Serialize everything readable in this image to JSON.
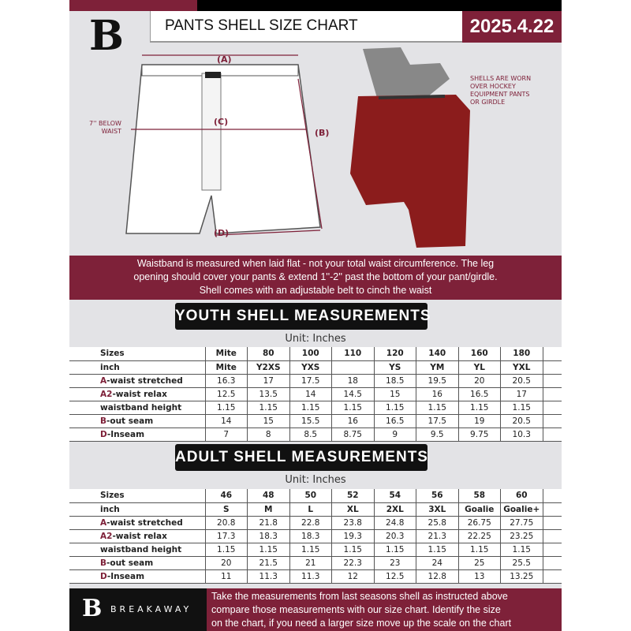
{
  "header": {
    "logo_letter": "B",
    "title": "PANTS SHELL SIZE CHART",
    "date": "2025.4.22"
  },
  "diagram": {
    "label_a": "(A)",
    "label_b": "(B)",
    "label_c": "(C)",
    "label_d": "(D)",
    "below_waist": "7'' BELOW\nWAIST",
    "worn_note": "SHELLS ARE WORN\nOVER HOCKEY\nEQUIPMENT PANTS\nOR GIRDLE"
  },
  "banner": [
    "Waistband is measured when laid flat - not your total waist circumference. The leg",
    "opening should cover your pants & extend 1''-2'' past the bottom of your pant/girdle.",
    "Shell comes with an adjustable belt to cinch the waist"
  ],
  "youth": {
    "heading": "YOUTH SHELL MEASUREMENTS",
    "unit": "Unit: Inches",
    "rows": [
      {
        "prefix": "",
        "label": "Sizes",
        "values": [
          "Mite",
          "80",
          "100",
          "110",
          "120",
          "140",
          "160",
          "180"
        ]
      },
      {
        "prefix": "",
        "label": "inch",
        "values": [
          "Mite",
          "Y2XS",
          "YXS",
          "",
          "YS",
          "YM",
          "YL",
          "YXL"
        ]
      },
      {
        "prefix": "A",
        "label": "-waist stretched",
        "values": [
          "16.3",
          "17",
          "17.5",
          "18",
          "18.5",
          "19.5",
          "20",
          "20.5"
        ]
      },
      {
        "prefix": "A2",
        "label": "-waist relax",
        "values": [
          "12.5",
          "13.5",
          "14",
          "14.5",
          "15",
          "16",
          "16.5",
          "17"
        ]
      },
      {
        "prefix": "",
        "label": "waistband height",
        "values": [
          "1.15",
          "1.15",
          "1.15",
          "1.15",
          "1.15",
          "1.15",
          "1.15",
          "1.15"
        ]
      },
      {
        "prefix": "B",
        "label": "-out seam",
        "values": [
          "14",
          "15",
          "15.5",
          "16",
          "16.5",
          "17.5",
          "19",
          "20.5"
        ]
      },
      {
        "prefix": "D",
        "label": "-Inseam",
        "values": [
          "7",
          "8",
          "8.5",
          "8.75",
          "9",
          "9.5",
          "9.75",
          "10.3"
        ]
      }
    ]
  },
  "adult": {
    "heading": "ADULT SHELL MEASUREMENTS",
    "unit": "Unit: Inches",
    "rows": [
      {
        "prefix": "",
        "label": "Sizes",
        "values": [
          "46",
          "48",
          "50",
          "52",
          "54",
          "56",
          "58",
          "60"
        ]
      },
      {
        "prefix": "",
        "label": "inch",
        "values": [
          "S",
          "M",
          "L",
          "XL",
          "2XL",
          "3XL",
          "Goalie",
          "Goalie+"
        ]
      },
      {
        "prefix": "A",
        "label": "-waist stretched",
        "values": [
          "20.8",
          "21.8",
          "22.8",
          "23.8",
          "24.8",
          "25.8",
          "26.75",
          "27.75"
        ]
      },
      {
        "prefix": "A2",
        "label": "-waist relax",
        "values": [
          "17.3",
          "18.3",
          "18.3",
          "19.3",
          "20.3",
          "21.3",
          "22.25",
          "23.25"
        ]
      },
      {
        "prefix": "",
        "label": "waistband height",
        "values": [
          "1.15",
          "1.15",
          "1.15",
          "1.15",
          "1.15",
          "1.15",
          "1.15",
          "1.15"
        ]
      },
      {
        "prefix": "B",
        "label": "-out seam",
        "values": [
          "20",
          "21.5",
          "21",
          "22.3",
          "23",
          "24",
          "25",
          "25.5"
        ]
      },
      {
        "prefix": "D",
        "label": "-Inseam",
        "values": [
          "11",
          "11.3",
          "11.3",
          "12",
          "12.5",
          "12.8",
          "13",
          "13.25"
        ]
      }
    ]
  },
  "footer": {
    "logo_letter": "B",
    "brand": "BREAKAWAY",
    "lines": [
      "Take the measurements from last seasons shell as instructed above",
      "compare those measurements  with our size chart. Identify the size",
      "on the chart, if you need a larger size move up the scale on the chart"
    ]
  },
  "colors": {
    "accent": "#7e2139",
    "background": "#e3e3e6"
  }
}
